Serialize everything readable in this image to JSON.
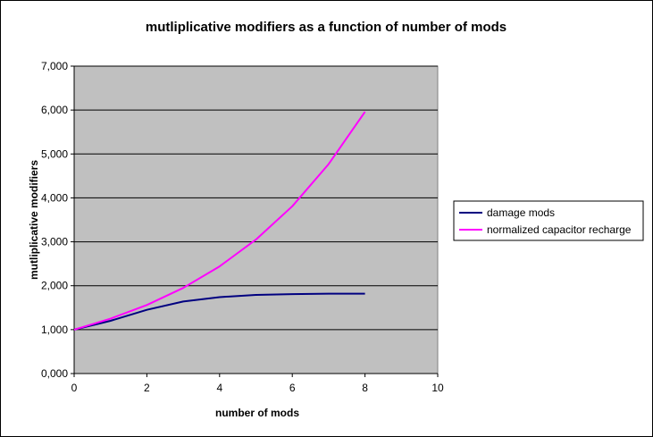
{
  "chart_data": {
    "type": "line",
    "title": "mutliplicative modifiers as a function of number of mods",
    "xlabel": "number of mods",
    "ylabel": "mutliplicative modifiers",
    "xlim": [
      0,
      10
    ],
    "ylim": [
      0,
      7
    ],
    "x_ticks": [
      "0",
      "2",
      "4",
      "6",
      "8",
      "10"
    ],
    "y_ticks": [
      "0,000",
      "1,000",
      "2,000",
      "3,000",
      "4,000",
      "5,000",
      "6,000",
      "7,000"
    ],
    "grid": "horizontal",
    "plot_background": "#c0c0c0",
    "legend_position": "right",
    "x": [
      0,
      1,
      2,
      3,
      4,
      5,
      6,
      7,
      8
    ],
    "series": [
      {
        "name": "damage mods",
        "color": "#000080",
        "values": [
          1.0,
          1.2,
          1.45,
          1.64,
          1.74,
          1.79,
          1.81,
          1.82,
          1.82
        ]
      },
      {
        "name": "normalized capacitor recharge",
        "color": "#ff00ff",
        "values": [
          1.0,
          1.25,
          1.56,
          1.95,
          2.44,
          3.05,
          3.81,
          4.77,
          5.96
        ]
      }
    ]
  }
}
